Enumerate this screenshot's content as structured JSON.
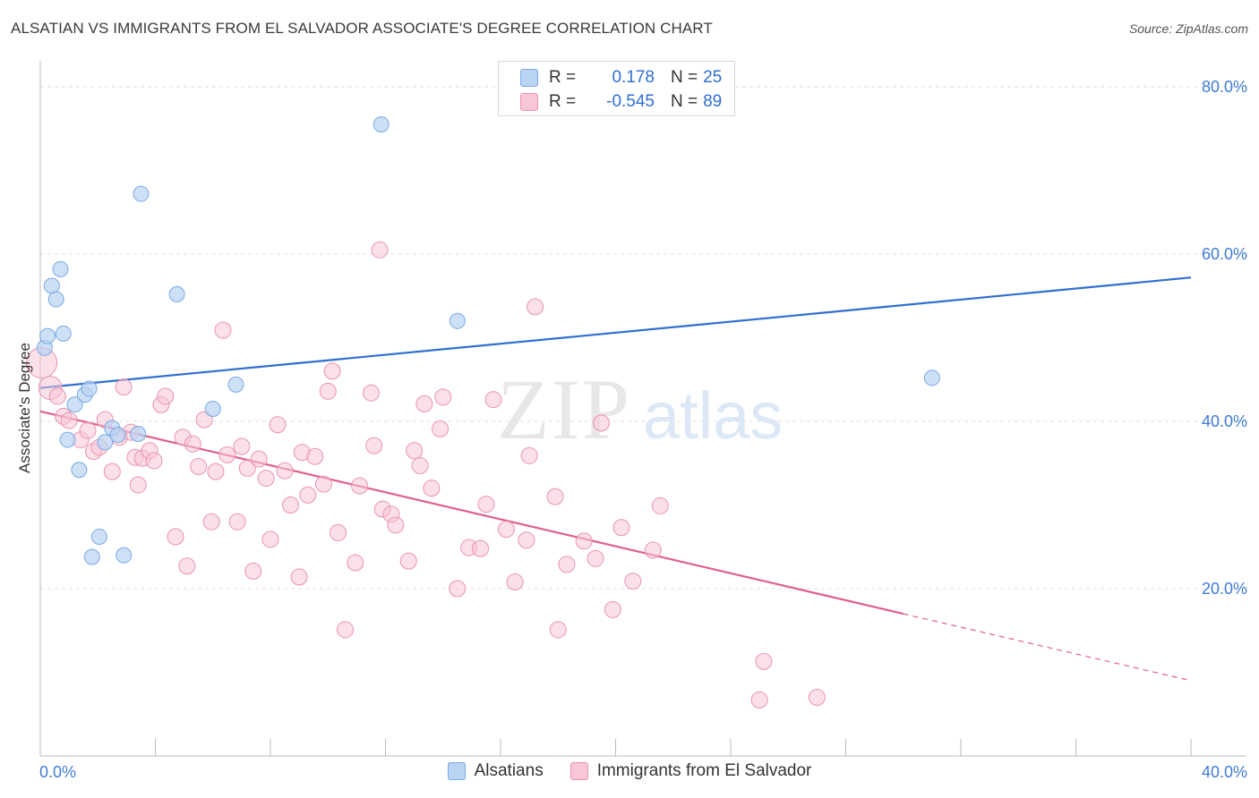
{
  "title": "ALSATIAN VS IMMIGRANTS FROM EL SALVADOR ASSOCIATE'S DEGREE CORRELATION CHART",
  "source": "Source: ZipAtlas.com",
  "watermark": {
    "zip": "ZIP",
    "atlas": "atlas"
  },
  "stats": {
    "r_label": "R =",
    "n_label": "N =",
    "rows": [
      {
        "r": "0.178",
        "n": "25"
      },
      {
        "r": "-0.545",
        "n": "89"
      }
    ]
  },
  "legend": {
    "alsatians": "Alsatians",
    "elsalvador": "Immigrants from El Salvador"
  },
  "colors": {
    "blue_fill": "#b9d3f2",
    "blue_stroke": "#7aaae4",
    "blue_line": "#2f6fd0",
    "pink_fill": "#f8c6d6",
    "pink_stroke": "#e993b1",
    "pink_line": "#e0608c",
    "grid": "#dddddd",
    "tick_text": "#3f7bd6"
  },
  "chart_data": {
    "type": "scatter",
    "title": "ALSATIAN VS IMMIGRANTS FROM EL SALVADOR ASSOCIATE'S DEGREE CORRELATION CHART",
    "xlabel": "",
    "ylabel": "Associate's Degree",
    "xlim": [
      0,
      40
    ],
    "ylim": [
      0,
      80
    ],
    "x_ticks": [
      "0.0%",
      "40.0%"
    ],
    "y_ticks": [
      "20.0%",
      "40.0%",
      "60.0%",
      "80.0%"
    ],
    "grid": true,
    "legend_position": "bottom",
    "series": [
      {
        "name": "Alsatians",
        "r": 0.178,
        "n": 25,
        "trend": {
          "x0": 0,
          "y0": 44.0,
          "x1": 40,
          "y1": 57.2
        },
        "points": [
          [
            0.15,
            48.8
          ],
          [
            0.25,
            50.2
          ],
          [
            0.4,
            56.2
          ],
          [
            0.55,
            54.6
          ],
          [
            0.7,
            58.2
          ],
          [
            0.8,
            50.5
          ],
          [
            0.95,
            37.8
          ],
          [
            1.2,
            42.0
          ],
          [
            1.35,
            34.2
          ],
          [
            1.55,
            43.2
          ],
          [
            1.7,
            43.9
          ],
          [
            1.8,
            23.8
          ],
          [
            2.05,
            26.2
          ],
          [
            2.25,
            37.5
          ],
          [
            2.5,
            39.2
          ],
          [
            2.7,
            38.4
          ],
          [
            2.9,
            24.0
          ],
          [
            3.4,
            38.5
          ],
          [
            3.5,
            67.2
          ],
          [
            4.75,
            55.2
          ],
          [
            6.0,
            41.5
          ],
          [
            6.8,
            44.4
          ],
          [
            11.85,
            75.5
          ],
          [
            14.5,
            52.0
          ],
          [
            31.0,
            45.2
          ]
        ]
      },
      {
        "name": "Immigrants from El Salvador",
        "r": -0.545,
        "n": 89,
        "trend": {
          "x0": 0,
          "y0": 41.2,
          "x1": 30.0,
          "y1": 17.0,
          "dash_x1": 40,
          "dash_y1": 9.0
        },
        "points": [
          [
            0.05,
            47.0
          ],
          [
            0.35,
            44.0
          ],
          [
            0.6,
            43.0
          ],
          [
            0.8,
            40.6
          ],
          [
            1.0,
            40.1
          ],
          [
            1.4,
            37.8
          ],
          [
            1.65,
            38.9
          ],
          [
            1.85,
            36.4
          ],
          [
            2.05,
            36.9
          ],
          [
            2.25,
            40.2
          ],
          [
            2.5,
            34.0
          ],
          [
            2.75,
            38.1
          ],
          [
            2.9,
            44.1
          ],
          [
            3.15,
            38.7
          ],
          [
            3.3,
            35.7
          ],
          [
            3.4,
            32.4
          ],
          [
            3.55,
            35.6
          ],
          [
            3.8,
            36.5
          ],
          [
            3.95,
            35.3
          ],
          [
            4.2,
            42.0
          ],
          [
            4.35,
            43.0
          ],
          [
            4.7,
            26.2
          ],
          [
            4.95,
            38.1
          ],
          [
            5.1,
            22.7
          ],
          [
            5.3,
            37.3
          ],
          [
            5.5,
            34.6
          ],
          [
            5.7,
            40.2
          ],
          [
            5.95,
            28.0
          ],
          [
            6.1,
            34.0
          ],
          [
            6.35,
            50.9
          ],
          [
            6.5,
            36.0
          ],
          [
            6.85,
            28.0
          ],
          [
            7.0,
            37.0
          ],
          [
            7.2,
            34.4
          ],
          [
            7.4,
            22.1
          ],
          [
            7.6,
            35.5
          ],
          [
            7.85,
            33.2
          ],
          [
            8.0,
            25.9
          ],
          [
            8.25,
            39.6
          ],
          [
            8.5,
            34.1
          ],
          [
            8.7,
            30.0
          ],
          [
            9.0,
            21.4
          ],
          [
            9.1,
            36.3
          ],
          [
            9.3,
            31.2
          ],
          [
            9.55,
            35.8
          ],
          [
            9.85,
            32.5
          ],
          [
            10.0,
            43.6
          ],
          [
            10.15,
            46.0
          ],
          [
            10.35,
            26.7
          ],
          [
            10.6,
            15.1
          ],
          [
            10.95,
            23.1
          ],
          [
            11.1,
            32.3
          ],
          [
            11.5,
            43.4
          ],
          [
            11.6,
            37.1
          ],
          [
            11.8,
            60.5
          ],
          [
            11.9,
            29.5
          ],
          [
            12.2,
            28.9
          ],
          [
            12.35,
            27.6
          ],
          [
            12.8,
            23.3
          ],
          [
            13.0,
            36.5
          ],
          [
            13.2,
            34.7
          ],
          [
            13.35,
            42.1
          ],
          [
            13.6,
            32.0
          ],
          [
            13.9,
            39.1
          ],
          [
            14.0,
            42.9
          ],
          [
            14.5,
            20.0
          ],
          [
            14.9,
            24.9
          ],
          [
            15.3,
            24.8
          ],
          [
            15.5,
            30.1
          ],
          [
            15.75,
            42.6
          ],
          [
            16.2,
            27.1
          ],
          [
            16.5,
            20.8
          ],
          [
            16.9,
            25.8
          ],
          [
            17.0,
            35.9
          ],
          [
            17.2,
            53.7
          ],
          [
            17.9,
            31.0
          ],
          [
            18.0,
            15.1
          ],
          [
            18.3,
            22.9
          ],
          [
            18.9,
            25.7
          ],
          [
            19.3,
            23.6
          ],
          [
            19.5,
            39.8
          ],
          [
            19.9,
            17.5
          ],
          [
            20.2,
            27.3
          ],
          [
            20.6,
            20.9
          ],
          [
            21.3,
            24.6
          ],
          [
            21.55,
            29.9
          ],
          [
            25.0,
            6.7
          ],
          [
            25.15,
            11.3
          ],
          [
            27.0,
            7.0
          ]
        ]
      }
    ]
  }
}
